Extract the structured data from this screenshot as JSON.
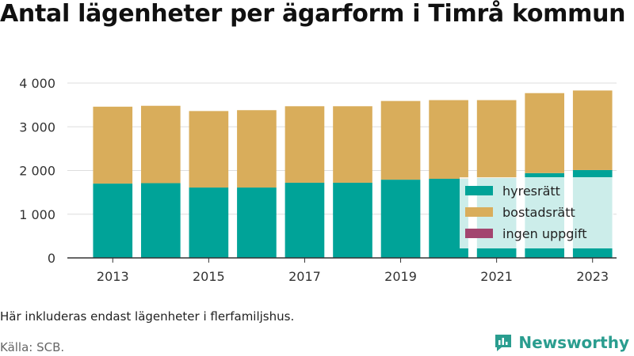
{
  "title": "Antal lägenheter per ägarform i Timrå kommun",
  "note": "Här inkluderas endast lägenheter i flerfamiljshus.",
  "source": "Källa: SCB.",
  "brand": {
    "name": "Newsworthy",
    "icon": "newsworthy-logo-icon",
    "color": "#2a9d8f"
  },
  "chart_data": {
    "type": "bar",
    "stacked": true,
    "categories": [
      "2013",
      "2014",
      "2015",
      "2016",
      "2017",
      "2018",
      "2019",
      "2020",
      "2021",
      "2022",
      "2023"
    ],
    "x_tick_labels": [
      "2013",
      "2015",
      "2017",
      "2019",
      "2021",
      "2023"
    ],
    "series": [
      {
        "name": "hyresrätt",
        "color": "#00a398",
        "values": [
          1700,
          1710,
          1610,
          1610,
          1720,
          1720,
          1790,
          1810,
          1830,
          1940,
          2010
        ]
      },
      {
        "name": "bostadsrätt",
        "color": "#d9ad5b",
        "values": [
          1760,
          1770,
          1750,
          1770,
          1750,
          1750,
          1800,
          1800,
          1780,
          1830,
          1820
        ]
      },
      {
        "name": "ingen uppgift",
        "color": "#a3456f",
        "values": [
          0,
          0,
          0,
          0,
          0,
          0,
          0,
          0,
          0,
          0,
          0
        ]
      }
    ],
    "ylim": [
      0,
      4000
    ],
    "y_ticks": [
      0,
      1000,
      2000,
      3000,
      4000
    ],
    "y_tick_labels": [
      "0",
      "1 000",
      "2 000",
      "3 000",
      "4 000"
    ],
    "xlabel": "",
    "ylabel": "",
    "grid": "horizontal",
    "legend_position": "bottom-right"
  }
}
